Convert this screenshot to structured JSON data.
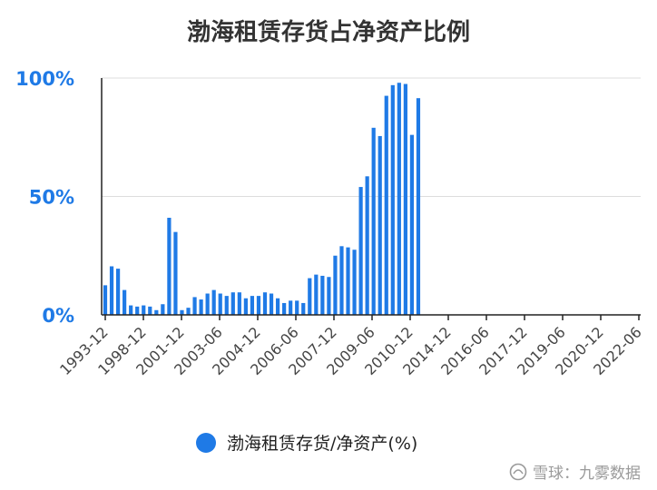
{
  "chart_data": {
    "type": "bar",
    "title": "渤海租赁存货占净资产比例",
    "xlabel": "",
    "ylabel": "",
    "ylim": [
      0,
      100
    ],
    "y_ticks": [
      "0%",
      "50%",
      "100%"
    ],
    "x_ticks": [
      "1993-12",
      "1998-12",
      "2001-12",
      "2003-06",
      "2004-12",
      "2006-06",
      "2007-12",
      "2009-06",
      "2010-12",
      "2014-12",
      "2016-06",
      "2017-12",
      "2019-06",
      "2020-12",
      "2022-06"
    ],
    "grid": true,
    "legend_position": "bottom",
    "series": [
      {
        "name": "渤海租赁存货/净资产(%)",
        "color": "#1f7ae6",
        "values": [
          12.5,
          20.5,
          19.5,
          10.5,
          4,
          3.5,
          4,
          3.5,
          2,
          4.5,
          41,
          35,
          2,
          3,
          7.5,
          6.5,
          9,
          10.5,
          9,
          8,
          9.5,
          9.5,
          7,
          8,
          8,
          9.5,
          9,
          7,
          5,
          6,
          6,
          5,
          15.5,
          17,
          16.5,
          16,
          25,
          29,
          28.5,
          27.5,
          54,
          58.5,
          79,
          75.5,
          92.5,
          97,
          98,
          97.5,
          76,
          91.5
        ]
      }
    ]
  },
  "watermark": {
    "text": "雪球：九雾数据"
  }
}
